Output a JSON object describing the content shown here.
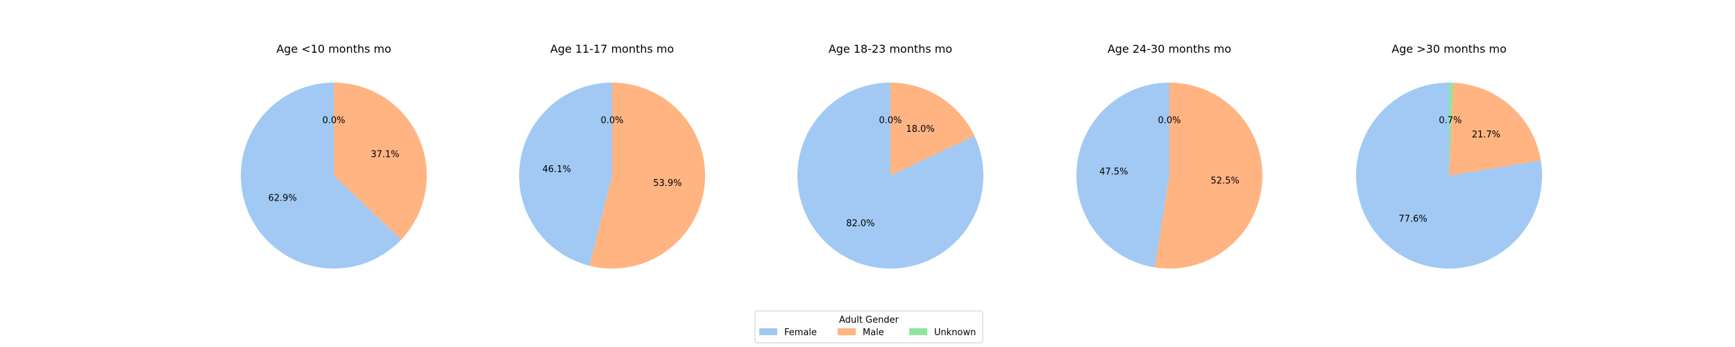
{
  "chart_data": {
    "type": "pie",
    "categories": [
      "Female",
      "Male",
      "Unknown"
    ],
    "colors": [
      "#a1c9f4",
      "#ffb482",
      "#8de5a1"
    ],
    "legend": {
      "title": "Adult Gender",
      "position": "bottom-center"
    },
    "pies": [
      {
        "title": "Age <10 months mo",
        "values": [
          62.9,
          37.1,
          0.0
        ],
        "labels": [
          "62.9%",
          "37.1%",
          "0.0%"
        ]
      },
      {
        "title": "Age 11-17 months mo",
        "values": [
          46.1,
          53.9,
          0.0
        ],
        "labels": [
          "46.1%",
          "53.9%",
          "0.0%"
        ]
      },
      {
        "title": "Age 18-23 months mo",
        "values": [
          82.0,
          18.0,
          0.0
        ],
        "labels": [
          "82.0%",
          "18.0%",
          "0.0%"
        ]
      },
      {
        "title": "Age 24-30 months mo",
        "values": [
          47.5,
          52.5,
          0.0
        ],
        "labels": [
          "47.5%",
          "52.5%",
          "0.0%"
        ]
      },
      {
        "title": "Age >30 months mo",
        "values": [
          77.6,
          21.7,
          0.7
        ],
        "labels": [
          "77.6%",
          "21.7%",
          "0.7%"
        ]
      }
    ]
  }
}
